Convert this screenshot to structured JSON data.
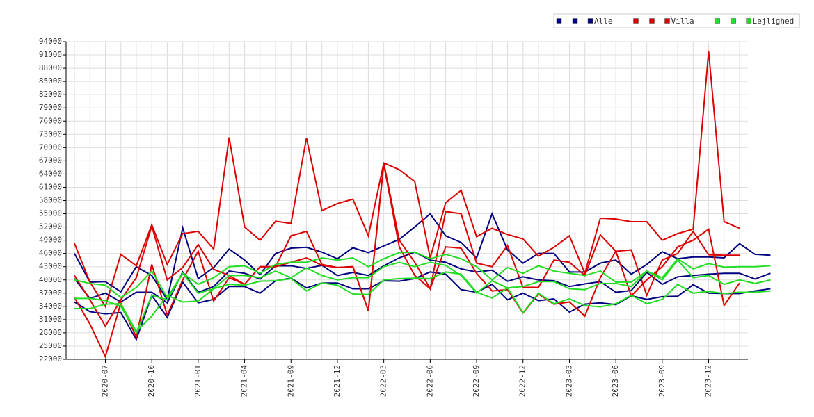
{
  "chart_data": {
    "type": "line",
    "categories": [
      null,
      null,
      "2020-07",
      null,
      null,
      "2020-10",
      null,
      null,
      "2021-01",
      null,
      null,
      "2021-04",
      null,
      null,
      "2021-09",
      null,
      null,
      "2021-12",
      null,
      null,
      "2022-03",
      null,
      null,
      "2022-06",
      null,
      null,
      "2022-09",
      null,
      null,
      "2022-12",
      null,
      null,
      "2023-03",
      null,
      null,
      "2023-06",
      null,
      null,
      "2023-09",
      null,
      null,
      "2023-12",
      null,
      null
    ],
    "ylim": [
      22000,
      94000
    ],
    "yticks": [
      22000,
      25000,
      28000,
      31000,
      34000,
      37000,
      40000,
      43000,
      46000,
      49000,
      52000,
      55000,
      58000,
      61000,
      64000,
      67000,
      70000,
      73000,
      76000,
      79000,
      82000,
      85000,
      88000,
      91000,
      94000
    ],
    "grid": true,
    "legend": "top-right",
    "series": [
      {
        "name": "Alle",
        "color": "#000080",
        "lines": [
          [
            46000,
            39500,
            39600,
            37300,
            43000,
            41000,
            35500,
            51800,
            40300,
            42800,
            47000,
            44500,
            41200,
            46000,
            47200,
            47400,
            46300,
            44800,
            47300,
            46200,
            47700,
            49200,
            52000,
            55000,
            50000,
            48500,
            45000,
            55000,
            46800,
            43800,
            46000,
            46000,
            41800,
            41800,
            43800,
            44500,
            41300,
            43500,
            46400,
            44800,
            45200,
            45200,
            45000,
            48200,
            45800,
            45600
          ],
          [
            40300,
            35800,
            37000,
            35000,
            37200,
            37200,
            34800,
            41800,
            37200,
            38500,
            42000,
            41500,
            40200,
            43200,
            43200,
            42600,
            43300,
            41000,
            41700,
            41000,
            43200,
            45000,
            46300,
            44500,
            44000,
            42500,
            41800,
            42200,
            39700,
            40700,
            40000,
            39800,
            38500,
            39100,
            39600,
            37200,
            37600,
            41700,
            39000,
            40700,
            41000,
            41300,
            41500,
            41500,
            40200,
            41500
          ],
          [
            35000,
            32800,
            32300,
            32600,
            26500,
            36500,
            31500,
            39500,
            34800,
            35600,
            38500,
            38500,
            37000,
            39800,
            40400,
            38200,
            39300,
            39300,
            38000,
            38000,
            39800,
            39700,
            40300,
            41800,
            41300,
            37800,
            37200,
            39000,
            35500,
            37000,
            35300,
            35700,
            32700,
            34500,
            34800,
            34400,
            36400,
            35600,
            36200,
            36300,
            38900,
            37000,
            36900,
            36900,
            37500,
            38000
          ]
        ]
      },
      {
        "name": "Villa",
        "color": "#dd0000",
        "lines": [
          [
            48300,
            39500,
            34000,
            45800,
            43200,
            52500,
            43500,
            50500,
            51000,
            47000,
            72300,
            52000,
            49000,
            53300,
            52800,
            72200,
            55700,
            57300,
            58300,
            50000,
            66500,
            65000,
            62300,
            45000,
            57500,
            60300,
            49800,
            51700,
            50300,
            49300,
            45400,
            47400,
            50000,
            41500,
            54000,
            53800,
            53200,
            53200,
            49000,
            50500,
            51500,
            91800,
            53200,
            51700,
            null,
            null
          ],
          [
            41000,
            35500,
            29500,
            35500,
            40500,
            52200,
            40000,
            42800,
            48000,
            42400,
            41000,
            39000,
            43000,
            43000,
            50000,
            51000,
            43500,
            42800,
            43000,
            33000,
            66500,
            49000,
            44000,
            38000,
            55500,
            55000,
            43800,
            43000,
            47800,
            38300,
            38300,
            44500,
            44000,
            41000,
            50200,
            46500,
            46800,
            36500,
            44500,
            46000,
            51000,
            45700,
            45600,
            45600,
            null,
            null
          ],
          [
            36000,
            30000,
            22600,
            34800,
            27000,
            43500,
            32000,
            40000,
            46500,
            35200,
            40500,
            39000,
            43000,
            43000,
            44000,
            45000,
            43300,
            42800,
            43000,
            33000,
            66200,
            47500,
            41000,
            38000,
            47500,
            47200,
            41500,
            37500,
            37800,
            32500,
            36800,
            34500,
            35000,
            31800,
            40500,
            46500,
            36400,
            40000,
            43000,
            47500,
            49000,
            51500,
            34200,
            39300,
            null,
            null
          ]
        ]
      },
      {
        "name": "Lejlighed",
        "color": "#22dd22",
        "lines": [
          [
            40000,
            39200,
            38800,
            36000,
            38300,
            42000,
            36000,
            41500,
            39000,
            40500,
            43000,
            43200,
            41500,
            43500,
            44000,
            44000,
            45000,
            44500,
            45000,
            43000,
            44800,
            46200,
            46300,
            44800,
            45800,
            44800,
            43000,
            40000,
            42800,
            41500,
            43200,
            42000,
            41500,
            41000,
            42000,
            39500,
            39500,
            42000,
            40500,
            44800,
            42500,
            43700,
            42900,
            43000,
            43000,
            43200
          ],
          [
            35800,
            35800,
            35300,
            34000,
            28000,
            36500,
            35500,
            41500,
            37000,
            38000,
            41000,
            41000,
            40500,
            42000,
            40500,
            42700,
            41000,
            40000,
            40500,
            40500,
            43000,
            44000,
            43000,
            44000,
            43300,
            41000,
            37000,
            39800,
            38200,
            38500,
            39600,
            39600,
            38000,
            37800,
            39200,
            39200,
            38500,
            42000,
            40000,
            44500,
            40500,
            41000,
            39000,
            40000,
            39200,
            40000
          ],
          [
            33500,
            33500,
            34500,
            34600,
            28300,
            31800,
            36500,
            35000,
            35200,
            38000,
            39000,
            38800,
            39700,
            39800,
            40300,
            37500,
            39300,
            38800,
            36800,
            36700,
            40000,
            40300,
            40400,
            40300,
            41800,
            41300,
            37200,
            35900,
            38200,
            32600,
            37000,
            34600,
            35700,
            34200,
            33900,
            34600,
            36500,
            34600,
            35600,
            39000,
            37000,
            37400,
            36900,
            37200,
            37200,
            37500
          ]
        ]
      }
    ]
  }
}
